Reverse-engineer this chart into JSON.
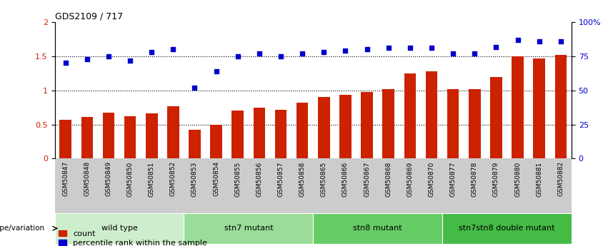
{
  "title": "GDS2109 / 717",
  "samples": [
    "GSM50847",
    "GSM50848",
    "GSM50849",
    "GSM50850",
    "GSM50851",
    "GSM50852",
    "GSM50853",
    "GSM50854",
    "GSM50855",
    "GSM50856",
    "GSM50857",
    "GSM50858",
    "GSM50865",
    "GSM50866",
    "GSM50867",
    "GSM50868",
    "GSM50869",
    "GSM50870",
    "GSM50877",
    "GSM50878",
    "GSM50879",
    "GSM50880",
    "GSM50881",
    "GSM50882"
  ],
  "bar_values": [
    0.57,
    0.61,
    0.67,
    0.62,
    0.66,
    0.77,
    0.42,
    0.5,
    0.7,
    0.75,
    0.72,
    0.82,
    0.9,
    0.93,
    0.98,
    1.02,
    1.25,
    1.28,
    1.02,
    1.02,
    1.2,
    1.5,
    1.47,
    1.52
  ],
  "scatter_values": [
    70,
    73,
    75,
    72,
    78,
    80,
    52,
    64,
    75,
    77,
    75,
    77,
    78,
    79,
    80,
    81,
    81,
    81,
    77,
    77,
    82,
    87,
    86,
    86
  ],
  "bar_color": "#cc2200",
  "scatter_color": "#0000cc",
  "ylim_left": [
    0,
    2
  ],
  "ylim_right": [
    0,
    100
  ],
  "yticks_left": [
    0,
    0.5,
    1.0,
    1.5,
    2.0
  ],
  "ytick_labels_left": [
    "0",
    "0.5",
    "1",
    "1.5",
    "2"
  ],
  "yticks_right": [
    0,
    25,
    50,
    75,
    100
  ],
  "ytick_labels_right": [
    "0",
    "25",
    "50",
    "75",
    "100%"
  ],
  "groups": [
    {
      "label": "wild type",
      "start": 0,
      "end": 5,
      "color": "#cceecc"
    },
    {
      "label": "stn7 mutant",
      "start": 6,
      "end": 11,
      "color": "#99dd99"
    },
    {
      "label": "stn8 mutant",
      "start": 12,
      "end": 17,
      "color": "#66cc66"
    },
    {
      "label": "stn7stn8 double mutant",
      "start": 18,
      "end": 23,
      "color": "#44bb44"
    }
  ],
  "group_row_label": "genotype/variation",
  "legend_count_label": "count",
  "legend_pct_label": "percentile rank within the sample",
  "dotted_line_values": [
    0.5,
    1.0,
    1.5
  ],
  "background_color": "#ffffff",
  "xtick_bg_color": "#cccccc",
  "bar_width": 0.55
}
